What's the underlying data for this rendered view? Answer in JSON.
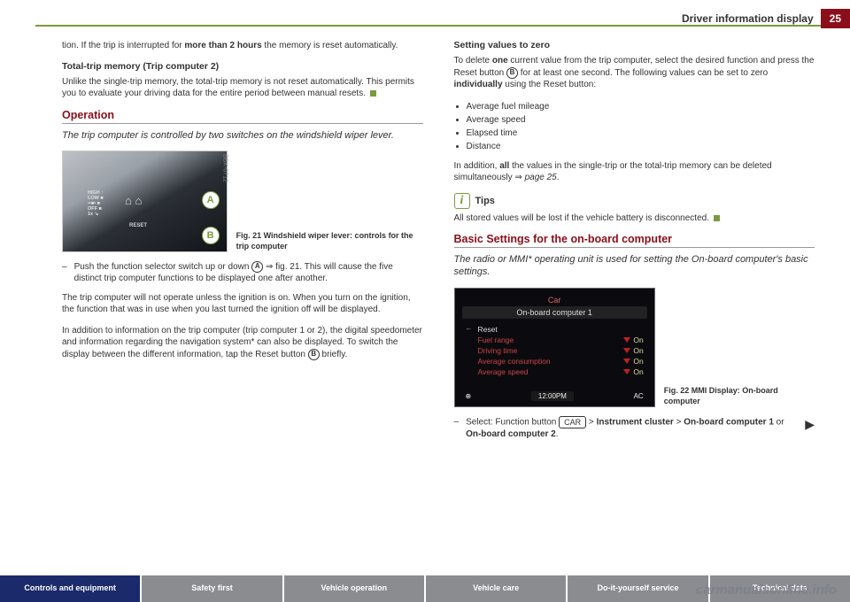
{
  "header": {
    "title": "Driver information display",
    "page_number": "25"
  },
  "colors": {
    "accent_red": "#8b0f1a",
    "accent_green": "#7a9b3c",
    "footer_active": "#1a2a6b",
    "footer_inactive": "#8a8c90"
  },
  "left_column": {
    "continuation_text": "tion. If the trip is interrupted for <b>more than 2 hours</b> the memory is reset automatically.",
    "sub1_heading": "Total-trip memory (Trip computer 2)",
    "sub1_text": "Unlike the single-trip memory, the total-trip memory is not reset automatically. This permits you to evaluate your driving data for the entire period between manual resets.",
    "section_heading": "Operation",
    "section_sub": "The trip computer is controlled by two switches on the windshield wiper lever.",
    "fig21": {
      "code": "BBK-0712",
      "label_a": "A",
      "label_b": "B",
      "caption": "Fig. 21  Windshield wiper lever: controls for the trip computer",
      "lever_labels": "HIGH ↑\nLOW ■\n••■• ■\nOFF ■\n1x ↘",
      "lever_reset": "RESET"
    },
    "instruction": "Push the function selector switch up or down <span class='inline-circle'>A</span> ⇒ fig. 21. This will cause the five distinct trip computer functions to be displayed one after another.",
    "para1": "The trip computer will not operate unless the ignition is on. When you turn on the ignition, the function that was in use when you last turned the ignition off will be displayed.",
    "para2": "In addition to information on the trip computer (trip computer 1 or 2), the digital speedometer and information regarding the navigation system* can also be displayed. To switch the display between the different information, tap the Reset button <span class='inline-circle'>B</span> briefly."
  },
  "right_column": {
    "sub1_heading": "Setting values to zero",
    "sub1_text": "To delete <b>one</b> current value from the trip computer, select the desired function and press the Reset button <span class='inline-circle'>B</span> for at least one second. The following values can be set to zero <b>individually</b> using the Reset button:",
    "bullets": [
      "Average fuel mileage",
      "Average speed",
      "Elapsed time",
      "Distance"
    ],
    "addition_text": "In addition, <b>all</b> the values in the single-trip or the total-trip memory can be deleted simultaneously ⇒ <i>page 25</i>.",
    "tips_label": "Tips",
    "tips_text": "All stored values will be lost if the vehicle battery is disconnected.",
    "section_heading": "Basic Settings for the on-board computer",
    "section_sub": "The radio or MMI* operating unit is used for setting the On-board computer's basic settings.",
    "fig22": {
      "top_label": "Car",
      "title": "On-board computer 1",
      "reset_label": "Reset",
      "rows": [
        {
          "label": "Fuel range",
          "state": "On"
        },
        {
          "label": "Driving time",
          "state": "On"
        },
        {
          "label": "Average consumption",
          "state": "On"
        },
        {
          "label": "Average speed",
          "state": "On"
        }
      ],
      "time": "12:00PM",
      "ac": "AC",
      "left_icon": "⊕",
      "caption": "Fig. 22  MMI Display: On-board computer"
    },
    "instruction": "Select: Function button <span class='btn-box'>CAR</span> > <b>Instrument cluster</b> > <b>On-board computer 1</b> or <b>On-board computer 2</b>."
  },
  "footer": {
    "items": [
      "Controls and equipment",
      "Safety first",
      "Vehicle operation",
      "Vehicle care",
      "Do-it-yourself service",
      "Technical data"
    ]
  },
  "watermark": "carmanualsonline.info"
}
